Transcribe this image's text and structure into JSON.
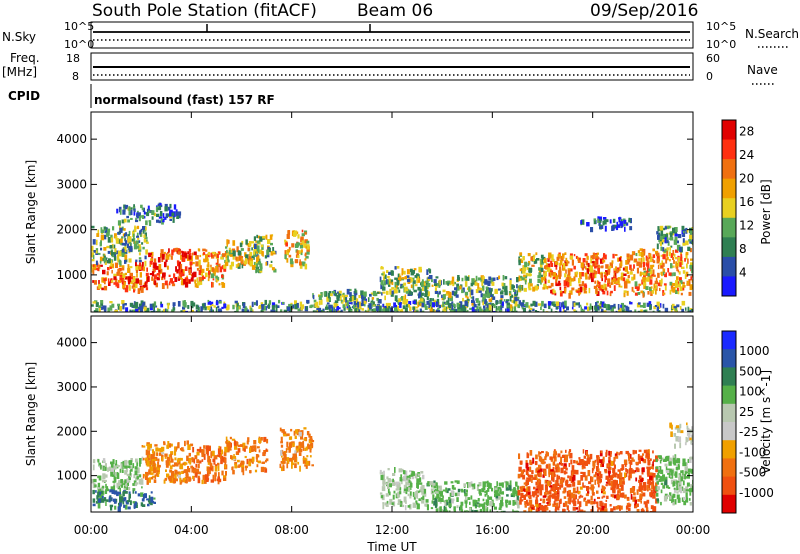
{
  "header": {
    "station": "South Pole Station (fitACF)",
    "beam": "Beam 06",
    "date": "09/Sep/2016"
  },
  "top_panels": {
    "nsky_label": "N.Sky",
    "nsky_ticks": [
      "10^5",
      "10^0"
    ],
    "nsearch_label": "N.Search",
    "nsearch_ticks": [
      "10^5",
      "10^0"
    ],
    "freq_label": "Freq.",
    "freq_unit": "[MHz]",
    "freq_ticks": [
      "18",
      "8"
    ],
    "nave_label": "Nave",
    "nave_ticks": [
      "60",
      "0"
    ],
    "cpid_label": "CPID",
    "cpid_text": "normalsound (fast) 157 RF"
  },
  "colors": {
    "power_scale": [
      "#1a1aff",
      "#2a4ea8",
      "#2f7f52",
      "#58a858",
      "#e8d020",
      "#f0a000",
      "#f07010",
      "#ff3010",
      "#e00000"
    ],
    "velocity_scale": [
      "#1a2aff",
      "#2a55a8",
      "#2f7f52",
      "#55b048",
      "#b8c8b0",
      "#c8c8c8",
      "#f0a000",
      "#f07010",
      "#f05010",
      "#e00000"
    ]
  },
  "chart_data": [
    {
      "type": "heatmap",
      "name": "power",
      "xlabel": "Time UT",
      "ylabel": "Slant Range [km]",
      "xlim": [
        0,
        24
      ],
      "ylim": [
        180,
        4600
      ],
      "xticks": [
        "00:00",
        "04:00",
        "08:00",
        "12:00",
        "16:00",
        "20:00",
        "00:00"
      ],
      "yticks": [
        1000,
        2000,
        3000,
        4000
      ],
      "colorbar": {
        "label": "Power [dB]",
        "ticks": [
          4,
          8,
          12,
          16,
          20,
          24,
          28
        ],
        "range": [
          0,
          30
        ]
      },
      "regions": [
        {
          "t": [
            0.0,
            2.2
          ],
          "r": [
            700,
            1300
          ],
          "v": 22
        },
        {
          "t": [
            2.2,
            4.2
          ],
          "r": [
            800,
            1600
          ],
          "v": 24
        },
        {
          "t": [
            4.2,
            5.3
          ],
          "r": [
            800,
            1600
          ],
          "v": 19
        },
        {
          "t": [
            5.3,
            6.4
          ],
          "r": [
            1200,
            1800
          ],
          "v": 16
        },
        {
          "t": [
            6.4,
            7.3
          ],
          "r": [
            1100,
            1900
          ],
          "v": 13
        },
        {
          "t": [
            7.7,
            8.6
          ],
          "r": [
            1200,
            2000
          ],
          "v": 17
        },
        {
          "t": [
            0.0,
            2.2
          ],
          "r": [
            1300,
            2100
          ],
          "v": 11
        },
        {
          "t": [
            1.0,
            3.5
          ],
          "r": [
            2200,
            2600
          ],
          "v": 7
        },
        {
          "t": [
            8.8,
            11.5
          ],
          "r": [
            200,
            700
          ],
          "v": 10
        },
        {
          "t": [
            11.5,
            13.5
          ],
          "r": [
            300,
            1200
          ],
          "v": 12
        },
        {
          "t": [
            13.5,
            17.0
          ],
          "r": [
            200,
            1000
          ],
          "v": 11
        },
        {
          "t": [
            17.0,
            18.0
          ],
          "r": [
            700,
            1500
          ],
          "v": 14
        },
        {
          "t": [
            18.0,
            21.5
          ],
          "r": [
            600,
            1500
          ],
          "v": 21
        },
        {
          "t": [
            21.5,
            24.0
          ],
          "r": [
            600,
            1600
          ],
          "v": 19
        },
        {
          "t": [
            19.5,
            21.5
          ],
          "r": [
            2050,
            2300
          ],
          "v": 6
        },
        {
          "t": [
            22.5,
            24.0
          ],
          "r": [
            1600,
            2100
          ],
          "v": 10
        },
        {
          "t": [
            0.0,
            24.0
          ],
          "r": [
            200,
            450
          ],
          "v": 9
        }
      ]
    },
    {
      "type": "heatmap",
      "name": "velocity",
      "xlabel": "Time UT",
      "ylabel": "Slant Range [km]",
      "xlim": [
        0,
        24
      ],
      "ylim": [
        180,
        4600
      ],
      "xticks": [
        "00:00",
        "04:00",
        "08:00",
        "12:00",
        "16:00",
        "20:00",
        "00:00"
      ],
      "yticks": [
        1000,
        2000,
        3000,
        4000
      ],
      "colorbar": {
        "label": "Velocity [m s^-1]",
        "ticks": [
          "1000",
          "500",
          "100",
          "25",
          "-25",
          "-100",
          "-500",
          "-1000"
        ]
      },
      "regions": [
        {
          "t": [
            0.0,
            2.0
          ],
          "r": [
            700,
            1400
          ],
          "v": 100
        },
        {
          "t": [
            2.0,
            4.0
          ],
          "r": [
            900,
            1800
          ],
          "v": -100
        },
        {
          "t": [
            4.0,
            5.3
          ],
          "r": [
            900,
            1700
          ],
          "v": -200
        },
        {
          "t": [
            5.3,
            7.0
          ],
          "r": [
            1100,
            1900
          ],
          "v": -150
        },
        {
          "t": [
            7.5,
            8.8
          ],
          "r": [
            1200,
            2100
          ],
          "v": -120
        },
        {
          "t": [
            0.0,
            2.5
          ],
          "r": [
            300,
            700
          ],
          "v": 400
        },
        {
          "t": [
            11.5,
            13.2
          ],
          "r": [
            300,
            1200
          ],
          "v": 80
        },
        {
          "t": [
            13.2,
            17.0
          ],
          "r": [
            200,
            900
          ],
          "v": 150
        },
        {
          "t": [
            17.0,
            22.5
          ],
          "r": [
            200,
            1600
          ],
          "v": -300
        },
        {
          "t": [
            22.5,
            24.0
          ],
          "r": [
            400,
            1500
          ],
          "v": 120
        },
        {
          "t": [
            23.0,
            24.0
          ],
          "r": [
            1700,
            2200
          ],
          "v": 15
        }
      ]
    }
  ]
}
